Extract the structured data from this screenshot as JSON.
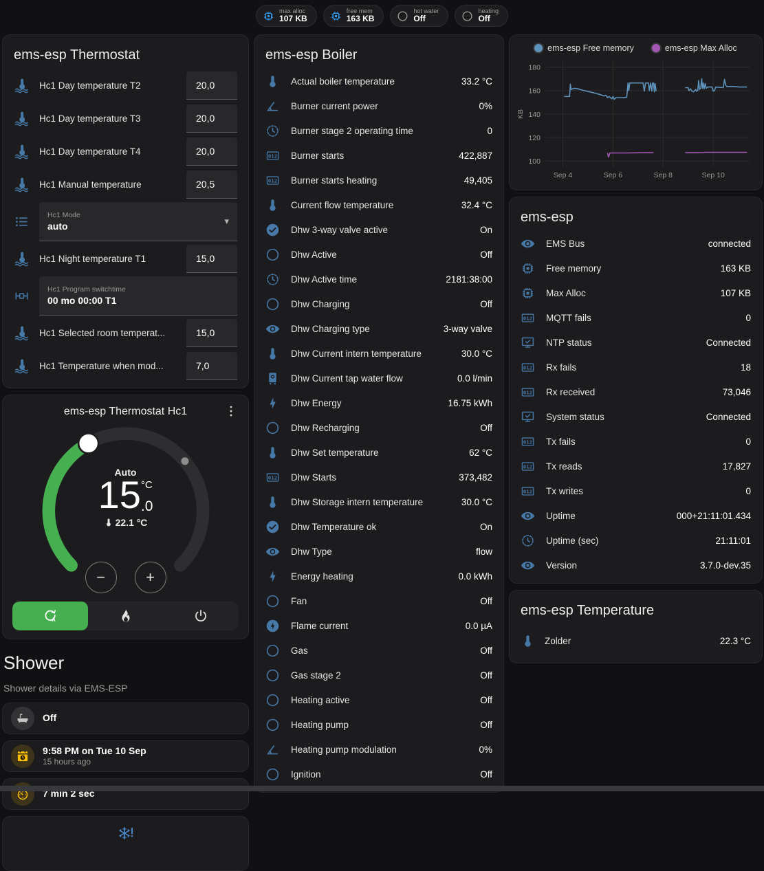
{
  "palette": {
    "accent_blue": "#2e9bef",
    "icon_blue": "#4679a8",
    "green": "#46af50",
    "amber": "#ffc107",
    "line_blue": "#5e93bc",
    "line_purple": "#a257b5"
  },
  "badges": [
    {
      "label": "max alloc",
      "value": "107 KB",
      "icon": "chip",
      "icon_color": "blue"
    },
    {
      "label": "free mem",
      "value": "163 KB",
      "icon": "chip",
      "icon_color": "blue"
    },
    {
      "label": "hot water",
      "value": "Off",
      "icon": "circle",
      "icon_color": "gray"
    },
    {
      "label": "heating",
      "value": "Off",
      "icon": "circle",
      "icon_color": "gray"
    }
  ],
  "thermostat_card": {
    "title": "ems-esp Thermostat",
    "rows": [
      {
        "type": "number",
        "icon": "thermometer-water",
        "label": "Hc1 Day temperature T2",
        "value": "20,0"
      },
      {
        "type": "number",
        "icon": "thermometer-water",
        "label": "Hc1 Day temperature T3",
        "value": "20,0"
      },
      {
        "type": "number",
        "icon": "thermometer-water",
        "label": "Hc1 Day temperature T4",
        "value": "20,0"
      },
      {
        "type": "number",
        "icon": "thermometer-water",
        "label": "Hc1 Manual temperature",
        "value": "20,5"
      },
      {
        "type": "select",
        "icon": "list",
        "label": "Hc1 Mode",
        "value": "auto",
        "caret": "▾"
      },
      {
        "type": "number",
        "icon": "thermometer-water",
        "label": "Hc1 Night temperature T1",
        "value": "15,0"
      },
      {
        "type": "text",
        "icon": "valve",
        "label": "Hc1 Program switchtime",
        "value": "00 mo 00:00 T1"
      },
      {
        "type": "number",
        "icon": "thermometer-water",
        "label": "Hc1 Selected room temperat...",
        "value": "15,0"
      },
      {
        "type": "number",
        "icon": "thermometer-water",
        "label": "Hc1 Temperature when mod...",
        "value": "7,0"
      }
    ]
  },
  "dial": {
    "title": "ems-esp Thermostat Hc1",
    "menu_icon": "dots-vertical",
    "mode": "Auto",
    "target_int": "15",
    "target_frac": ".0",
    "unit": "°C",
    "current_icon": "thermometer",
    "current": "22.1 °C",
    "decrease_label": "−",
    "increase_label": "+",
    "modes": [
      {
        "icon": "auto-mode",
        "active": true
      },
      {
        "icon": "flame",
        "active": false
      },
      {
        "icon": "power",
        "active": false
      }
    ]
  },
  "shower": {
    "title": "Shower",
    "subtitle": "Shower details via EMS-ESP",
    "tiles": [
      {
        "icon": "bathtub",
        "color": "gray",
        "primary": "Off"
      },
      {
        "icon": "calendar-clock",
        "color": "amber",
        "primary": "9:58 PM on Tue 10 Sep",
        "secondary": "15 hours ago"
      },
      {
        "icon": "timer",
        "color": "amber",
        "primary": "7 min 2 sec"
      }
    ],
    "pending_icon": "snowflake-alert"
  },
  "boiler_card": {
    "title": "ems-esp Boiler",
    "rows": [
      {
        "icon": "thermometer",
        "label": "Actual boiler temperature",
        "value": "33.2 °C"
      },
      {
        "icon": "angle",
        "label": "Burner current power",
        "value": "0%"
      },
      {
        "icon": "clock",
        "label": "Burner stage 2 operating time",
        "value": "0"
      },
      {
        "icon": "counter",
        "label": "Burner starts",
        "value": "422,887"
      },
      {
        "icon": "counter",
        "label": "Burner starts heating",
        "value": "49,405"
      },
      {
        "icon": "thermometer",
        "label": "Current flow temperature",
        "value": "32.4 °C"
      },
      {
        "icon": "check-circle",
        "label": "Dhw 3-way valve active",
        "value": "On"
      },
      {
        "icon": "circle",
        "label": "Dhw Active",
        "value": "Off"
      },
      {
        "icon": "clock",
        "label": "Dhw Active time",
        "value": "2181:38:00"
      },
      {
        "icon": "circle",
        "label": "Dhw Charging",
        "value": "Off"
      },
      {
        "icon": "eye",
        "label": "Dhw Charging type",
        "value": "3-way valve"
      },
      {
        "icon": "thermometer",
        "label": "Dhw Current intern temperature",
        "value": "30.0 °C"
      },
      {
        "icon": "water-boiler",
        "label": "Dhw Current tap water flow",
        "value": "0.0 l/min"
      },
      {
        "icon": "flash",
        "label": "Dhw Energy",
        "value": "16.75 kWh"
      },
      {
        "icon": "circle",
        "label": "Dhw Recharging",
        "value": "Off"
      },
      {
        "icon": "thermometer",
        "label": "Dhw Set temperature",
        "value": "62 °C"
      },
      {
        "icon": "counter",
        "label": "Dhw Starts",
        "value": "373,482"
      },
      {
        "icon": "thermometer",
        "label": "Dhw Storage intern temperature",
        "value": "30.0 °C"
      },
      {
        "icon": "check-circle",
        "label": "Dhw Temperature ok",
        "value": "On"
      },
      {
        "icon": "eye",
        "label": "Dhw Type",
        "value": "flow"
      },
      {
        "icon": "flash",
        "label": "Energy heating",
        "value": "0.0 kWh"
      },
      {
        "icon": "circle",
        "label": "Fan",
        "value": "Off"
      },
      {
        "icon": "flash-circle",
        "label": "Flame current",
        "value": "0.0 µA"
      },
      {
        "icon": "circle",
        "label": "Gas",
        "value": "Off"
      },
      {
        "icon": "circle",
        "label": "Gas stage 2",
        "value": "Off"
      },
      {
        "icon": "circle",
        "label": "Heating active",
        "value": "Off"
      },
      {
        "icon": "circle",
        "label": "Heating pump",
        "value": "Off"
      },
      {
        "icon": "angle",
        "label": "Heating pump modulation",
        "value": "0%"
      },
      {
        "icon": "circle",
        "label": "Ignition",
        "value": "Off"
      }
    ]
  },
  "emsesp_card": {
    "title": "ems-esp",
    "rows": [
      {
        "icon": "eye",
        "label": "EMS Bus",
        "value": "connected"
      },
      {
        "icon": "chip",
        "label": "Free memory",
        "value": "163 KB"
      },
      {
        "icon": "chip",
        "label": "Max Alloc",
        "value": "107 KB"
      },
      {
        "icon": "counter",
        "label": "MQTT fails",
        "value": "0"
      },
      {
        "icon": "monitor-check",
        "label": "NTP status",
        "value": "Connected"
      },
      {
        "icon": "counter",
        "label": "Rx fails",
        "value": "18"
      },
      {
        "icon": "counter",
        "label": "Rx received",
        "value": "73,046"
      },
      {
        "icon": "monitor-check",
        "label": "System status",
        "value": "Connected"
      },
      {
        "icon": "counter",
        "label": "Tx fails",
        "value": "0"
      },
      {
        "icon": "counter",
        "label": "Tx reads",
        "value": "17,827"
      },
      {
        "icon": "counter",
        "label": "Tx writes",
        "value": "0"
      },
      {
        "icon": "eye",
        "label": "Uptime",
        "value": "000+21:11:01.434"
      },
      {
        "icon": "clock",
        "label": "Uptime (sec)",
        "value": "21:11:01"
      },
      {
        "icon": "eye",
        "label": "Version",
        "value": "3.7.0-dev.35"
      }
    ]
  },
  "temperature_card": {
    "title": "ems-esp Temperature",
    "rows": [
      {
        "icon": "thermometer",
        "label": "Zolder",
        "value": "22.3 °C"
      }
    ]
  },
  "chart_data": {
    "type": "line",
    "ylabel": "KB",
    "ylim": [
      95,
      185
    ],
    "xlim": [
      3.3,
      11.45
    ],
    "yticks": [
      100,
      120,
      140,
      160,
      180
    ],
    "xticks": [
      {
        "label": "Sep 4",
        "x": 4
      },
      {
        "label": "Sep 6",
        "x": 6
      },
      {
        "label": "Sep 8",
        "x": 8
      },
      {
        "label": "Sep 10",
        "x": 10
      }
    ],
    "legend_position": "top",
    "grid": true,
    "series": [
      {
        "name": "ems-esp Free memory",
        "color": "#5e93bc",
        "segments": [
          [
            [
              4.05,
              155
            ],
            [
              4.27,
              155
            ],
            [
              4.3,
              165.5
            ],
            [
              4.33,
              161
            ],
            [
              4.45,
              162
            ],
            [
              4.6,
              161.5
            ],
            [
              4.75,
              160.5
            ],
            [
              4.95,
              159.5
            ],
            [
              5.15,
              158.5
            ],
            [
              5.35,
              157.5
            ],
            [
              5.5,
              156.5
            ],
            [
              5.65,
              155.5
            ],
            [
              5.72,
              156
            ],
            [
              5.78,
              154
            ],
            [
              5.85,
              155
            ],
            [
              5.95,
              153
            ],
            [
              6.0,
              155
            ],
            [
              6.05,
              152.5
            ],
            [
              6.12,
              154
            ],
            [
              6.3,
              154
            ],
            [
              6.45,
              154
            ],
            [
              6.55,
              154.5
            ],
            [
              6.6,
              166.5
            ],
            [
              6.63,
              160
            ],
            [
              6.67,
              166.5
            ],
            [
              7.2,
              166.5
            ],
            [
              7.25,
              159.5
            ],
            [
              7.3,
              166.5
            ],
            [
              7.42,
              166.5
            ],
            [
              7.45,
              160
            ],
            [
              7.5,
              166.5
            ],
            [
              7.55,
              159.5
            ],
            [
              7.58,
              166.5
            ],
            [
              7.62,
              166.5
            ],
            [
              7.65,
              159
            ],
            [
              7.68,
              166
            ],
            [
              7.72,
              159.5
            ]
          ],
          [
            [
              8.88,
              162.5
            ],
            [
              9.0,
              162.5
            ],
            [
              9.03,
              160
            ],
            [
              9.1,
              161.5
            ],
            [
              9.15,
              159.5
            ],
            [
              9.22,
              159
            ],
            [
              9.3,
              161
            ],
            [
              9.33,
              159.5
            ],
            [
              9.38,
              160
            ],
            [
              9.42,
              168.5
            ],
            [
              9.45,
              161
            ],
            [
              9.5,
              162
            ],
            [
              9.54,
              170
            ],
            [
              9.57,
              162
            ],
            [
              9.6,
              166.5
            ],
            [
              9.64,
              161.5
            ],
            [
              9.68,
              166
            ],
            [
              9.72,
              162
            ],
            [
              9.78,
              163
            ],
            [
              9.95,
              163
            ],
            [
              10.0,
              159.5
            ],
            [
              10.05,
              160
            ],
            [
              10.1,
              163
            ],
            [
              10.4,
              162.5
            ],
            [
              10.45,
              169.5
            ],
            [
              10.5,
              164.5
            ],
            [
              10.55,
              163.5
            ],
            [
              10.8,
              163.5
            ],
            [
              11.05,
              163
            ],
            [
              11.35,
              163
            ]
          ]
        ]
      },
      {
        "name": "ems-esp Max Alloc",
        "color": "#a257b5",
        "segments": [
          [
            [
              5.78,
              107
            ],
            [
              5.82,
              103.5
            ],
            [
              5.88,
              107
            ],
            [
              6.5,
              107
            ],
            [
              7.3,
              107.2
            ],
            [
              7.62,
              107.2
            ]
          ],
          [
            [
              8.88,
              107.2
            ],
            [
              9.6,
              107.2
            ],
            [
              9.65,
              107.5
            ],
            [
              10.5,
              107.5
            ],
            [
              11.35,
              107.5
            ]
          ]
        ]
      }
    ]
  }
}
